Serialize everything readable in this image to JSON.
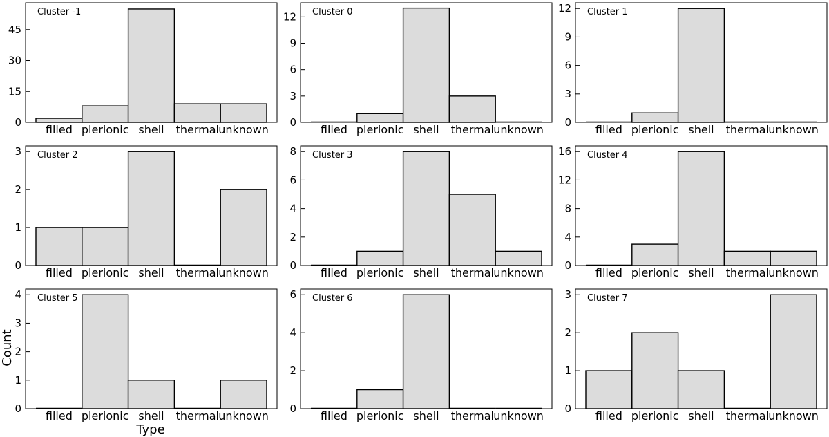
{
  "figure": {
    "ylabel": "Count",
    "xlabel": "Type"
  },
  "chart_data": [
    {
      "type": "bar",
      "title": "Cluster -1",
      "categories": [
        "filled",
        "plerionic",
        "shell",
        "thermal",
        "unknown"
      ],
      "values": [
        2,
        8,
        55,
        9,
        9
      ],
      "ylim": [
        0,
        58
      ],
      "yticks": [
        0,
        15,
        30,
        45
      ]
    },
    {
      "type": "bar",
      "title": "Cluster 0",
      "categories": [
        "filled",
        "plerionic",
        "shell",
        "thermal",
        "unknown"
      ],
      "values": [
        0,
        1,
        13,
        3,
        0
      ],
      "ylim": [
        0,
        13.6
      ],
      "yticks": [
        0,
        3,
        6,
        9,
        12
      ]
    },
    {
      "type": "bar",
      "title": "Cluster 1",
      "categories": [
        "filled",
        "plerionic",
        "shell",
        "thermal",
        "unknown"
      ],
      "values": [
        0,
        1,
        12,
        0,
        0
      ],
      "ylim": [
        0,
        12.6
      ],
      "yticks": [
        0,
        3,
        6,
        9,
        12
      ]
    },
    {
      "type": "bar",
      "title": "Cluster 2",
      "categories": [
        "filled",
        "plerionic",
        "shell",
        "thermal",
        "unknown"
      ],
      "values": [
        1,
        1,
        3,
        0,
        2
      ],
      "ylim": [
        0,
        3.15
      ],
      "yticks": [
        0,
        1,
        2,
        3
      ]
    },
    {
      "type": "bar",
      "title": "Cluster 3",
      "categories": [
        "filled",
        "plerionic",
        "shell",
        "thermal",
        "unknown"
      ],
      "values": [
        0,
        1,
        8,
        5,
        1
      ],
      "ylim": [
        0,
        8.4
      ],
      "yticks": [
        0,
        2,
        4,
        6,
        8
      ]
    },
    {
      "type": "bar",
      "title": "Cluster 4",
      "categories": [
        "filled",
        "plerionic",
        "shell",
        "thermal",
        "unknown"
      ],
      "values": [
        0,
        3,
        16,
        2,
        2
      ],
      "ylim": [
        0,
        16.8
      ],
      "yticks": [
        0,
        4,
        8,
        12,
        16
      ]
    },
    {
      "type": "bar",
      "title": "Cluster 5",
      "categories": [
        "filled",
        "plerionic",
        "shell",
        "thermal",
        "unknown"
      ],
      "values": [
        0,
        4,
        1,
        0,
        1
      ],
      "ylim": [
        0,
        4.2
      ],
      "yticks": [
        0,
        1,
        2,
        3,
        4
      ]
    },
    {
      "type": "bar",
      "title": "Cluster 6",
      "categories": [
        "filled",
        "plerionic",
        "shell",
        "thermal",
        "unknown"
      ],
      "values": [
        0,
        1,
        6,
        0,
        0
      ],
      "ylim": [
        0,
        6.3
      ],
      "yticks": [
        0,
        2,
        4,
        6
      ]
    },
    {
      "type": "bar",
      "title": "Cluster 7",
      "categories": [
        "filled",
        "plerionic",
        "shell",
        "thermal",
        "unknown"
      ],
      "values": [
        1,
        2,
        1,
        0,
        3
      ],
      "ylim": [
        0,
        3.15
      ],
      "yticks": [
        0,
        1,
        2,
        3
      ]
    }
  ],
  "colors": {
    "bar_fill": "#dcdcdc",
    "bar_stroke": "#000000",
    "axis": "#000000",
    "background": "#ffffff"
  }
}
